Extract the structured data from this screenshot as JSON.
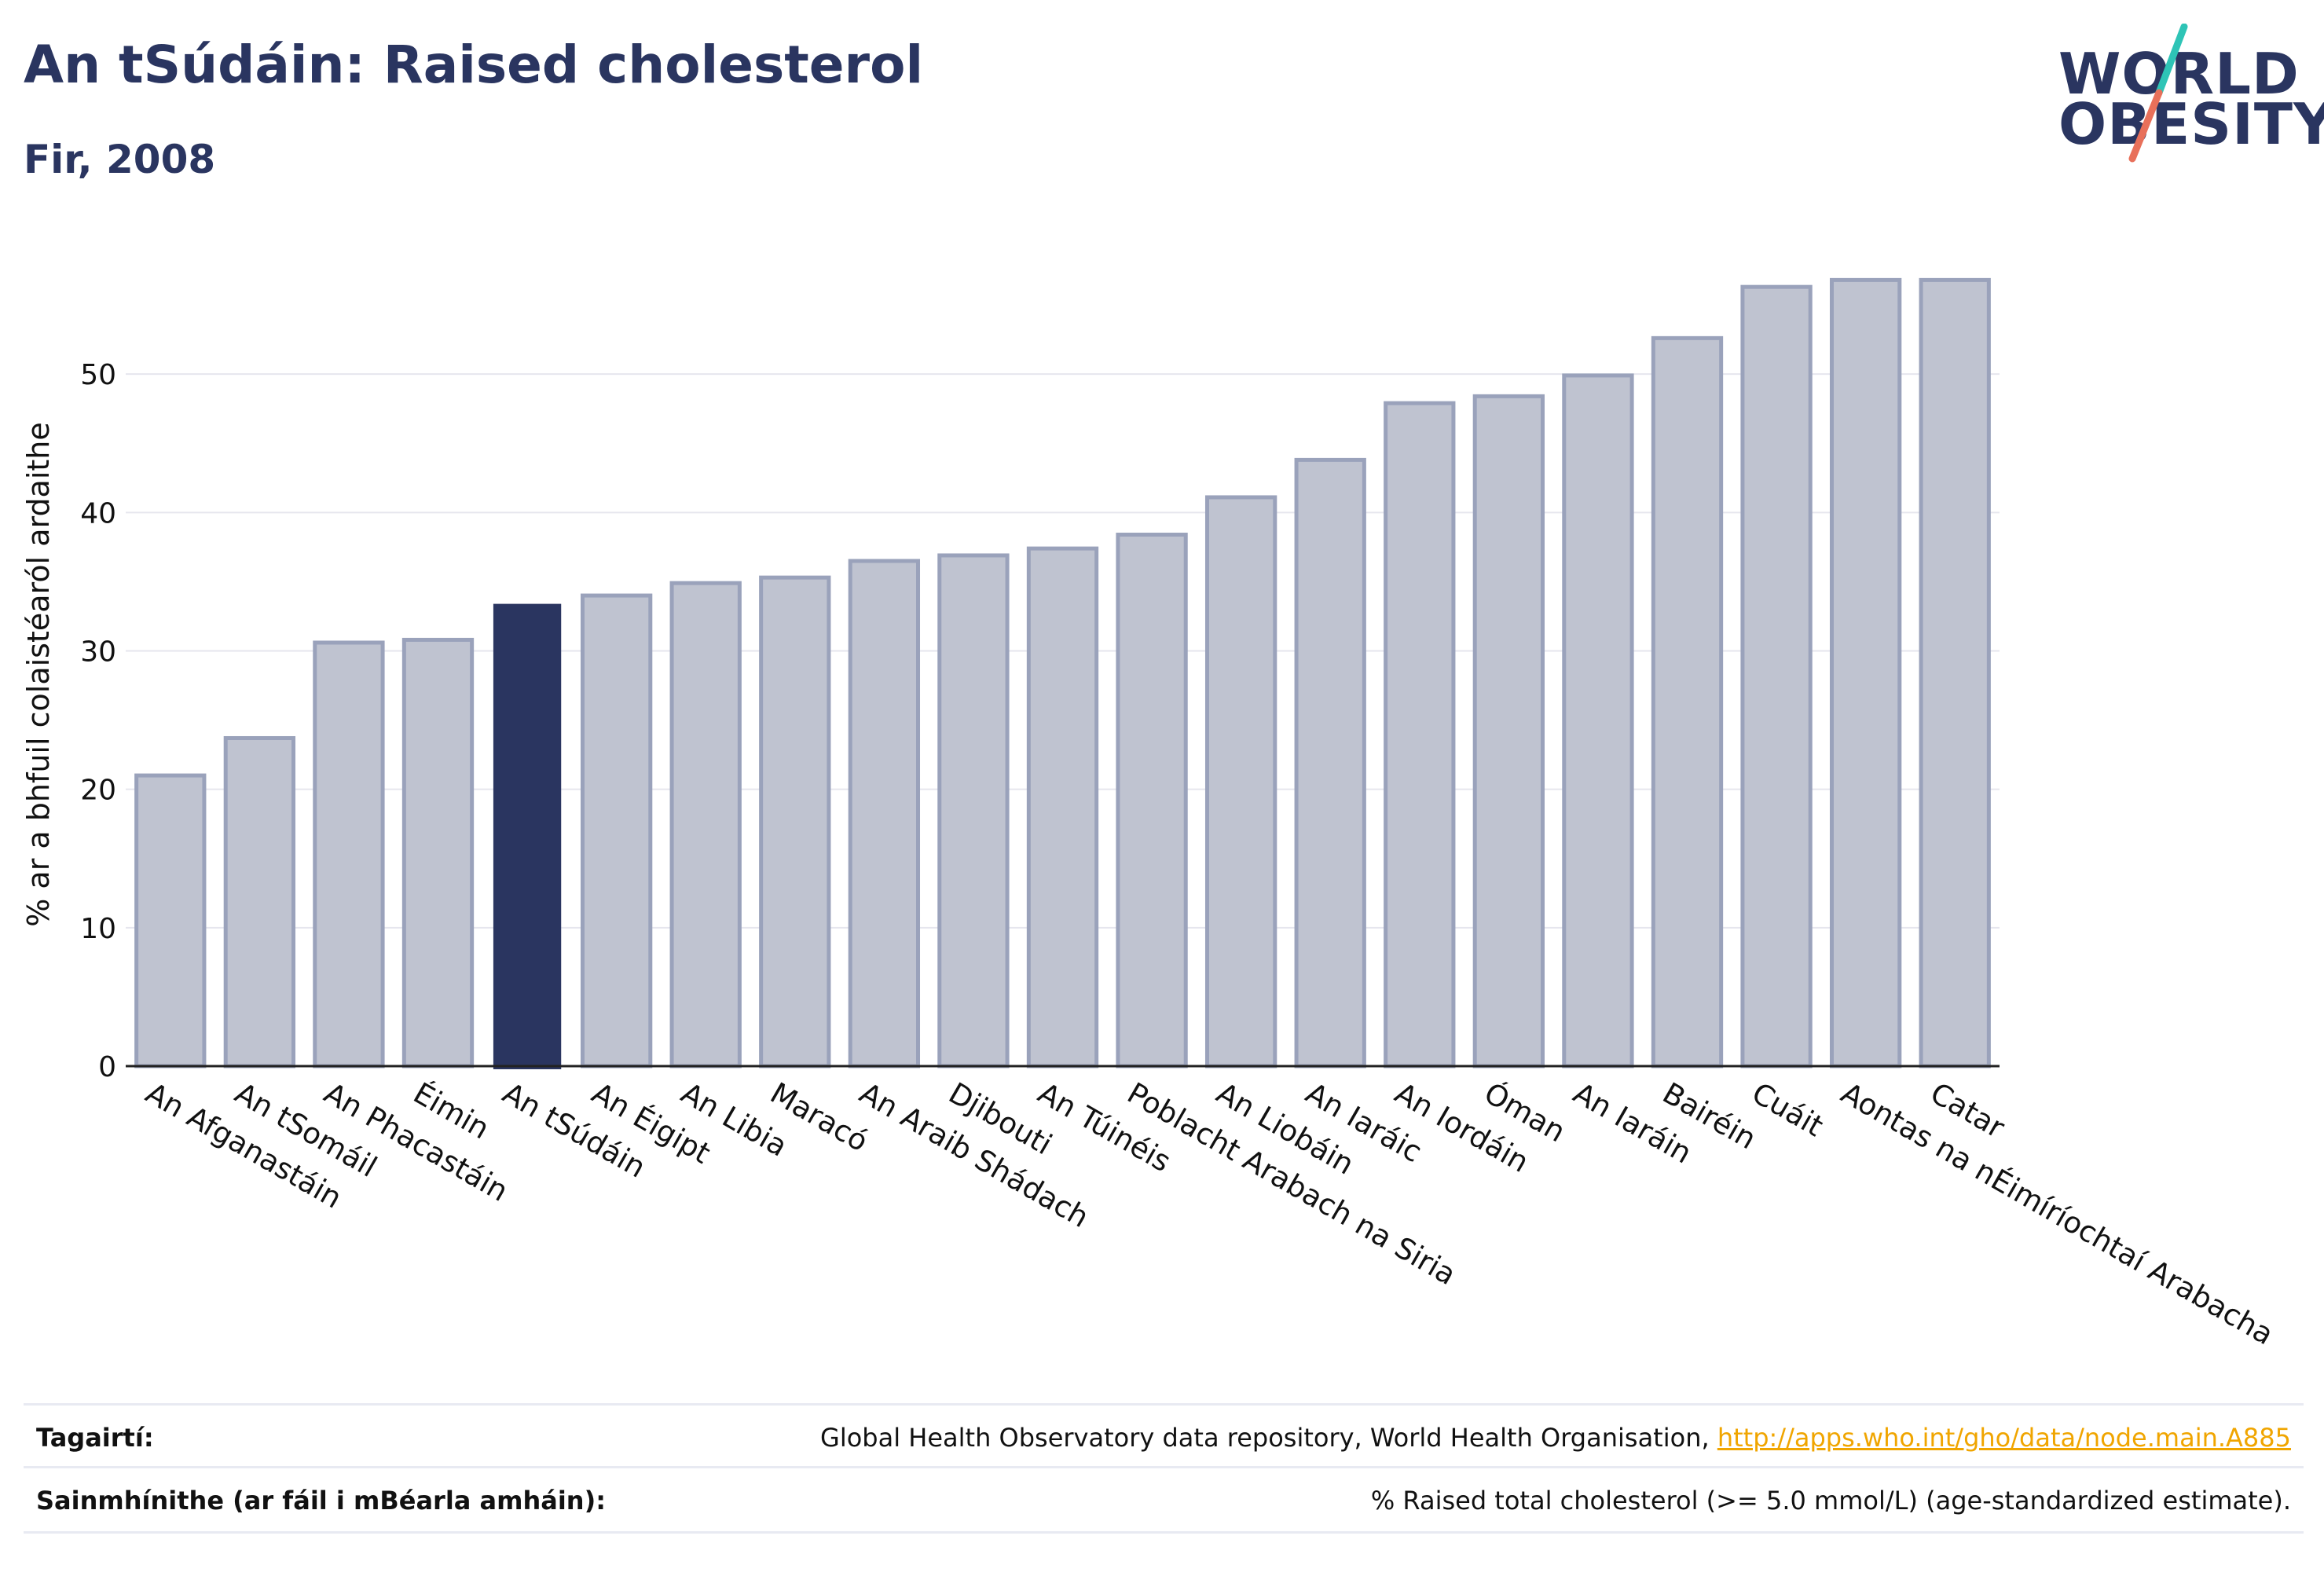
{
  "header": {
    "title": "An tSúdáin: Raised cholesterol",
    "subtitle": "Fir, 2008"
  },
  "logo": {
    "line1": "WORLD",
    "line2": "OBESITY"
  },
  "colors": {
    "bar": "#bfc3d0",
    "bar_stroke": "#9aa2bb",
    "highlight": "#2a3560",
    "grid": "#e6e6ee",
    "axis": "#222222",
    "logo_teal": "#2ec4b6",
    "logo_coral": "#e8705a",
    "link": "#f0a500"
  },
  "chart_data": {
    "type": "bar",
    "ylabel": "% ar a bhfuil colaistéaról ardaithe",
    "ylim": [
      0,
      60
    ],
    "yticks": [
      0,
      10,
      20,
      30,
      40,
      50
    ],
    "grid": true,
    "highlight_category": "An tSúdáin",
    "categories": [
      "An Afganastáin",
      "An tSomáil",
      "An Phacastáin",
      "Éimin",
      "An tSúdáin",
      "An Éigipt",
      "An Libia",
      "Maracó",
      "An Araib Shádach",
      "Djibouti",
      "An Túinéis",
      "Poblacht Arabach na Siria",
      "An Liobáin",
      "An Iaráic",
      "An Iordáin",
      "Óman",
      "An Iaráin",
      "Bairéin",
      "Cuáit",
      "Aontas na nÉimíríochtaí Arabacha",
      "Catar"
    ],
    "values": [
      21.0,
      23.7,
      30.6,
      30.8,
      33.4,
      34.0,
      34.9,
      35.3,
      36.5,
      36.9,
      37.4,
      38.4,
      41.1,
      43.8,
      47.9,
      48.4,
      49.9,
      52.6,
      56.3,
      56.8,
      56.8
    ]
  },
  "footer": {
    "references_label": "Tagairtí:",
    "references_text": "Global Health Observatory data repository, World Health Organisation, ",
    "references_link": "http://apps.who.int/gho/data/node.main.A885",
    "definitions_label": "Sainmhínithe (ar fáil i mBéarla amháin):",
    "definitions_text": "% Raised total cholesterol (>= 5.0 mmol/L) (age-standardized estimate)."
  }
}
